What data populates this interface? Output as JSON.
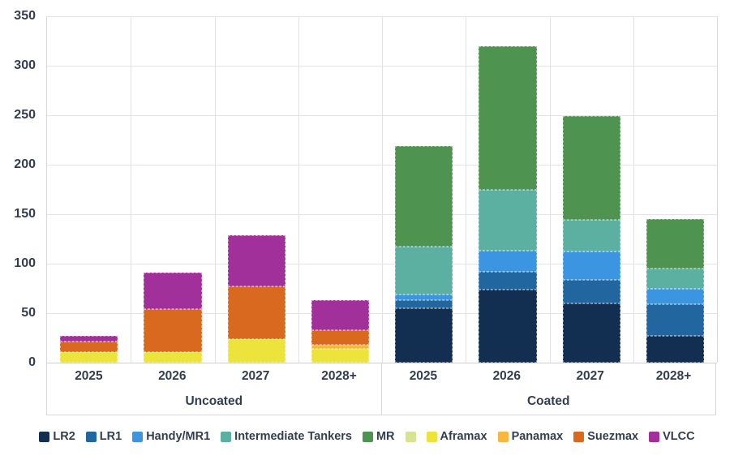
{
  "chart_data": {
    "type": "bar",
    "stacked": true,
    "title": "",
    "xlabel": "",
    "ylabel": "",
    "ylim": [
      0,
      350
    ],
    "yticks": [
      0,
      50,
      100,
      150,
      200,
      250,
      300,
      350
    ],
    "grid": true,
    "legend_position": "bottom",
    "groups": [
      {
        "label": "Uncoated",
        "categories": [
          "2025",
          "2026",
          "2027",
          "2028+"
        ]
      },
      {
        "label": "Coated",
        "categories": [
          "2025",
          "2026",
          "2027",
          "2028+"
        ]
      }
    ],
    "columns": [
      "Uncoated 2025",
      "Uncoated 2026",
      "Uncoated 2027",
      "Uncoated 2028+",
      "Coated 2025",
      "Coated 2026",
      "Coated 2027",
      "Coated 2028+"
    ],
    "stack_order": "first series at bottom",
    "series": [
      {
        "name": "LR2",
        "color": "#122f52",
        "values": [
          0,
          0,
          0,
          0,
          55,
          74,
          60,
          27
        ]
      },
      {
        "name": "LR1",
        "color": "#21669f",
        "values": [
          0,
          0,
          0,
          0,
          8,
          18,
          24,
          32
        ]
      },
      {
        "name": "Handy/MR1",
        "color": "#3b95e0",
        "values": [
          0,
          0,
          0,
          0,
          6,
          21,
          28,
          16
        ]
      },
      {
        "name": "Intermediate Tankers",
        "color": "#5cb0a2",
        "values": [
          0,
          0,
          0,
          0,
          48,
          62,
          32,
          20
        ]
      },
      {
        "name": "MR",
        "color": "#4e9350",
        "values": [
          0,
          0,
          0,
          0,
          102,
          145,
          105,
          50
        ]
      },
      {
        "name": "Aframax",
        "color": "#ede43b",
        "values": [
          11,
          11,
          24,
          14,
          0,
          0,
          0,
          0
        ]
      },
      {
        "name": "Panamax",
        "color": "#f8b840",
        "values": [
          0,
          0,
          0,
          4,
          0,
          0,
          0,
          0
        ]
      },
      {
        "name": "Suezmax",
        "color": "#d9691f",
        "values": [
          10,
          43,
          53,
          15,
          0,
          0,
          0,
          0
        ]
      },
      {
        "name": "VLCC",
        "color": "#a2309a",
        "values": [
          6,
          37,
          52,
          30,
          0,
          0,
          0,
          0
        ]
      }
    ],
    "column_totals": [
      27,
      91,
      129,
      63,
      219,
      320,
      249,
      145
    ]
  },
  "legend": {
    "items": [
      {
        "label": "LR2",
        "color": "#122f52"
      },
      {
        "label": "LR1",
        "color": "#21669f"
      },
      {
        "label": "Handy/MR1",
        "color": "#3b95e0"
      },
      {
        "label": "Intermediate Tankers",
        "color": "#5cb0a2"
      },
      {
        "label": "MR",
        "color": "#4e9350"
      },
      {
        "label": "",
        "color": "#cfe3ab",
        "pattern": true
      },
      {
        "label": "Aframax",
        "color": "#ede43b"
      },
      {
        "label": "Panamax",
        "color": "#f8b840"
      },
      {
        "label": "Suezmax",
        "color": "#d9691f"
      },
      {
        "label": "VLCC",
        "color": "#a2309a"
      }
    ]
  }
}
